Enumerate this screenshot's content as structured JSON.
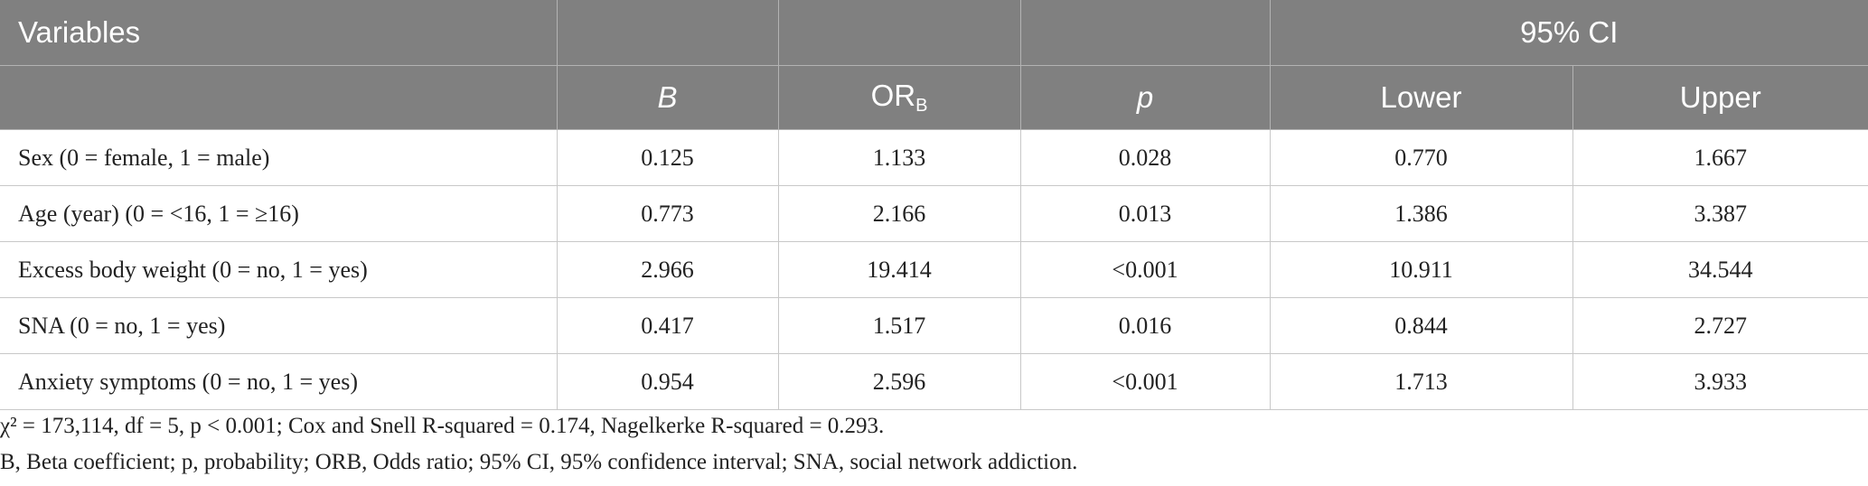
{
  "header": {
    "variables": "Variables",
    "ci": "95% CI",
    "b": "B",
    "or_main": "OR",
    "or_sub": "B",
    "p": "p",
    "lower": "Lower",
    "upper": "Upper"
  },
  "rows": [
    {
      "variable": "Sex (0 = female, 1 = male)",
      "b": "0.125",
      "or": "1.133",
      "p": "0.028",
      "lower": "0.770",
      "upper": "1.667"
    },
    {
      "variable": "Age (year) (0 = <16, 1 = ≥16)",
      "b": "0.773",
      "or": "2.166",
      "p": "0.013",
      "lower": "1.386",
      "upper": "3.387"
    },
    {
      "variable": "Excess body weight (0 = no, 1 = yes)",
      "b": "2.966",
      "or": "19.414",
      "p": "<0.001",
      "lower": "10.911",
      "upper": "34.544"
    },
    {
      "variable": "SNA (0 = no, 1 = yes)",
      "b": "0.417",
      "or": "1.517",
      "p": "0.016",
      "lower": "0.844",
      "upper": "2.727"
    },
    {
      "variable": "Anxiety symptoms (0 = no, 1 = yes)",
      "b": "0.954",
      "or": "2.596",
      "p": "<0.001",
      "lower": "1.713",
      "upper": "3.933"
    }
  ],
  "footnotes": {
    "line1": "χ² = 173,114, df = 5, p < 0.001; Cox and Snell R-squared = 0.174, Nagelkerke R-squared = 0.293.",
    "line2": "B, Beta coefficient; p, probability; ORB, Odds ratio; 95% CI, 95% confidence interval; SNA, social network addiction."
  }
}
